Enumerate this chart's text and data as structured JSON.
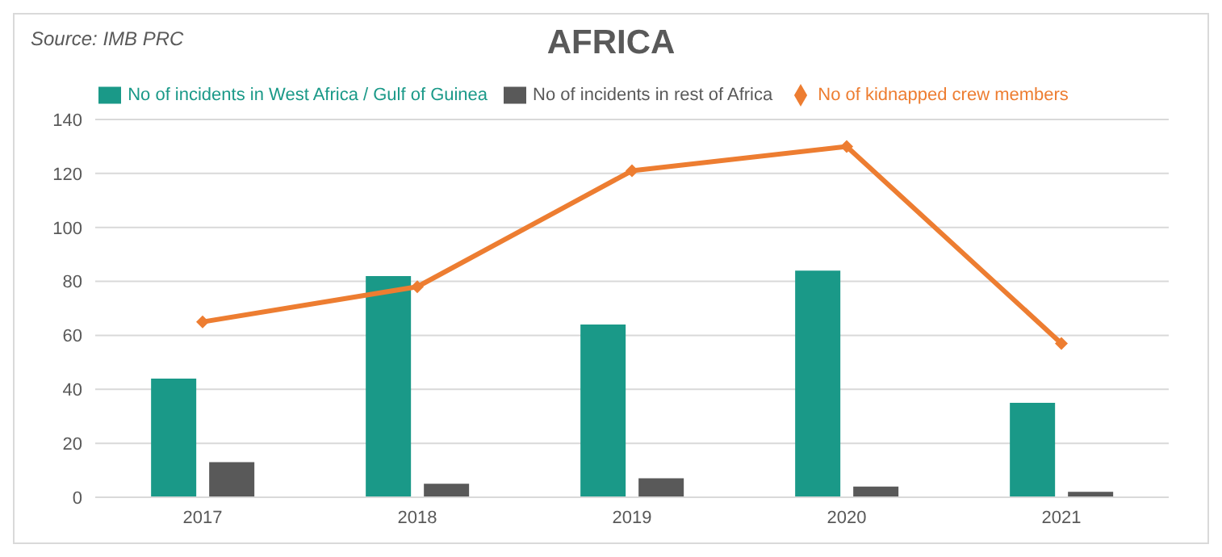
{
  "chart_data": {
    "type": "bar",
    "title": "AFRICA",
    "annotations": [
      "Source: IMB PRC"
    ],
    "categories": [
      "2017",
      "2018",
      "2019",
      "2020",
      "2021"
    ],
    "series": [
      {
        "name": "No of incidents in West Africa / Gulf of Guinea",
        "color": "#1a9988",
        "values": [
          44,
          82,
          64,
          84,
          35
        ]
      },
      {
        "name": "No of incidents in rest of Africa",
        "color": "#595959",
        "values": [
          13,
          5,
          7,
          4,
          2
        ]
      },
      {
        "name": "No of kidnapped crew members",
        "type": "line",
        "color": "#ed7d31",
        "marker": "diamond",
        "values": [
          65,
          78,
          121,
          130,
          57
        ]
      }
    ],
    "ylim": [
      0,
      140
    ],
    "yticks": [
      0,
      20,
      40,
      60,
      80,
      100,
      120,
      140
    ],
    "grid": "y",
    "legend": "top"
  }
}
